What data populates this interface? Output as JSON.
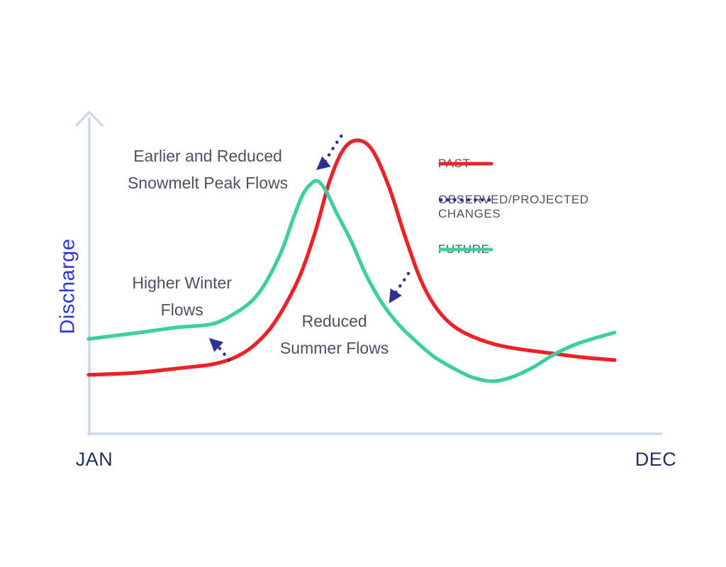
{
  "axes": {
    "y_label": "Discharge",
    "x_left": "JAN",
    "x_right": "DEC"
  },
  "legend": [
    {
      "id": "past",
      "label": "PAST",
      "style": "solid",
      "color": "#EC2227"
    },
    {
      "id": "changes",
      "label": "OBSERVED/PROJECTED CHANGES",
      "style": "dotted",
      "color": "#2E3192"
    },
    {
      "id": "future",
      "label": "FUTURE",
      "style": "solid",
      "color": "#3ECFA0"
    }
  ],
  "colors": {
    "past_red": "#EC2227",
    "future_green": "#3ECFA0",
    "changes_navy": "#2E3192",
    "axis": "#C9D8EA",
    "month_label": "#233158",
    "discharge_label": "#2B35DF",
    "annotation_text": "#4A5262",
    "background": "#FFFFFF"
  },
  "chart_data": {
    "type": "line",
    "title": "",
    "xlabel": "",
    "ylabel": "Discharge",
    "x_axis": {
      "unit": "month",
      "range": [
        0,
        11
      ],
      "tick_labels": [
        "JAN",
        "DEC"
      ]
    },
    "y_axis": {
      "unit": "relative discharge (% of axis height)",
      "range": [
        0,
        100
      ],
      "tick_labels": []
    },
    "grid": false,
    "legend_position": "right",
    "series": [
      {
        "name": "PAST",
        "color": "#EC2227",
        "style": "solid",
        "points": [
          [
            0,
            18.4
          ],
          [
            0.88,
            19
          ],
          [
            1.7,
            20.4
          ],
          [
            2.38,
            21.7
          ],
          [
            2.79,
            23.7
          ],
          [
            3.13,
            27
          ],
          [
            3.47,
            32.5
          ],
          [
            3.78,
            40.3
          ],
          [
            4.08,
            50.2
          ],
          [
            4.36,
            63.5
          ],
          [
            4.63,
            79
          ],
          [
            4.9,
            88.9
          ],
          [
            5.17,
            91.6
          ],
          [
            5.45,
            88.5
          ],
          [
            5.76,
            77.4
          ],
          [
            6.06,
            62.4
          ],
          [
            6.36,
            48.7
          ],
          [
            6.63,
            40.3
          ],
          [
            6.94,
            34.5
          ],
          [
            7.28,
            31
          ],
          [
            7.76,
            28.1
          ],
          [
            8.24,
            26.5
          ],
          [
            8.85,
            25.2
          ],
          [
            9.46,
            23.9
          ],
          [
            10.1,
            23
          ]
        ]
      },
      {
        "name": "FUTURE",
        "color": "#3ECFA0",
        "style": "solid",
        "points": [
          [
            0,
            29.6
          ],
          [
            0.88,
            31.4
          ],
          [
            1.7,
            33.2
          ],
          [
            2.38,
            34.3
          ],
          [
            2.83,
            37.8
          ],
          [
            3.13,
            41.4
          ],
          [
            3.34,
            45.6
          ],
          [
            3.54,
            51.3
          ],
          [
            3.74,
            58.4
          ],
          [
            3.92,
            66.8
          ],
          [
            4.11,
            74.6
          ],
          [
            4.29,
            78.3
          ],
          [
            4.41,
            78.8
          ],
          [
            4.56,
            75.7
          ],
          [
            4.76,
            69
          ],
          [
            5.04,
            60.2
          ],
          [
            5.31,
            50.2
          ],
          [
            5.61,
            41.4
          ],
          [
            5.92,
            34.7
          ],
          [
            6.26,
            29.2
          ],
          [
            6.63,
            24.1
          ],
          [
            7.01,
            20.4
          ],
          [
            7.39,
            17.5
          ],
          [
            7.76,
            16.4
          ],
          [
            8.13,
            17.7
          ],
          [
            8.54,
            20.8
          ],
          [
            8.94,
            24.8
          ],
          [
            9.35,
            27.9
          ],
          [
            9.73,
            29.9
          ],
          [
            10.1,
            31.6
          ]
        ]
      }
    ],
    "arrows": [
      {
        "name": "snowmelt-peak-shift",
        "color": "#2E3192",
        "points": [
          [
            4.85,
            92.9
          ],
          [
            4.72,
            89.8
          ],
          [
            4.61,
            86.9
          ],
          [
            4.53,
            84.5
          ]
        ],
        "tip": [
          4.37,
          82.3
        ]
      },
      {
        "name": "winter-flow-increase",
        "color": "#2E3192",
        "points": [
          [
            2.7,
            23
          ],
          [
            2.59,
            25.2
          ],
          [
            2.49,
            27.2
          ]
        ],
        "tip": [
          2.31,
          29.9
        ]
      },
      {
        "name": "summer-flow-decrease",
        "color": "#2E3192",
        "points": [
          [
            6.14,
            50
          ],
          [
            6.03,
            47.3
          ],
          [
            5.93,
            44.9
          ],
          [
            5.88,
            43.6
          ]
        ],
        "tip": [
          5.77,
          40.7
        ]
      }
    ],
    "annotations": [
      {
        "id": "snowmelt",
        "lines": [
          "Earlier and Reduced",
          "Snowmelt Peak Flows"
        ],
        "anchor": {
          "x": 0.208,
          "y": 0.175
        }
      },
      {
        "id": "winter",
        "lines": [
          "Higher Winter",
          "Flows"
        ],
        "anchor": {
          "x": 0.163,
          "y": 0.571
        }
      },
      {
        "id": "summer",
        "lines": [
          "Reduced",
          "Summer Flows"
        ],
        "anchor": {
          "x": 0.429,
          "y": 0.69
        }
      }
    ]
  }
}
